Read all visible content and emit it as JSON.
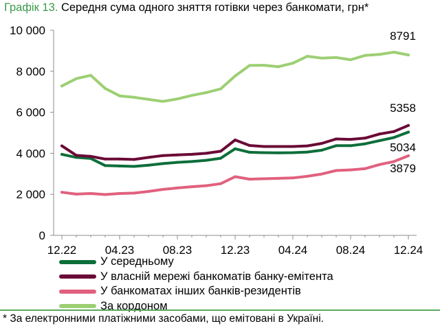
{
  "figure": {
    "label": "Графік 13.",
    "title": "Середня сума одного зняття готівки через банкомати, грн*",
    "footnote": "* За електронними платіжними засобами, що емітовані в Україні."
  },
  "colors": {
    "label": "#3a9a48",
    "divider": "#5aa95a"
  },
  "chart_data": {
    "type": "line",
    "title": "Середня сума одного зняття готівки через банкомати, грн*",
    "xlabel": "",
    "ylabel": "",
    "ylim": [
      0,
      10000
    ],
    "y_ticks": [
      0,
      2000,
      4000,
      6000,
      8000,
      10000
    ],
    "y_tick_labels": [
      "0",
      "2 000",
      "4 000",
      "6 000",
      "8 000",
      "10 000"
    ],
    "x_count": 25,
    "x_tick_positions": [
      0,
      4,
      8,
      12,
      16,
      20,
      24
    ],
    "x_tick_labels": [
      "12.22",
      "04.23",
      "08.23",
      "12.23",
      "04.24",
      "08.24",
      "12.24"
    ],
    "grid": false,
    "legend_position": "bottom",
    "series": [
      {
        "name": "У середньому",
        "color": "#0d6e3a",
        "values": [
          3950,
          3800,
          3750,
          3400,
          3380,
          3360,
          3420,
          3500,
          3560,
          3600,
          3660,
          3760,
          4220,
          4050,
          4030,
          4020,
          4030,
          4060,
          4150,
          4370,
          4370,
          4460,
          4620,
          4770,
          5034
        ],
        "end_label": "5034"
      },
      {
        "name": "У власній мережі банкоматів банку-емітента",
        "color": "#6a0a36",
        "values": [
          4360,
          3900,
          3850,
          3720,
          3720,
          3700,
          3800,
          3890,
          3920,
          3950,
          4000,
          4100,
          4650,
          4380,
          4330,
          4330,
          4330,
          4360,
          4480,
          4700,
          4680,
          4740,
          4940,
          5060,
          5358
        ],
        "end_label": "5358"
      },
      {
        "name": "У банкоматах інших банків-резидентів",
        "color": "#e0617e",
        "values": [
          2100,
          2010,
          2040,
          1990,
          2040,
          2060,
          2140,
          2240,
          2310,
          2370,
          2420,
          2520,
          2860,
          2740,
          2760,
          2780,
          2800,
          2880,
          2990,
          3160,
          3190,
          3250,
          3450,
          3600,
          3879
        ],
        "end_label": "3879"
      },
      {
        "name": "За кордоном",
        "color": "#9dcf73",
        "values": [
          7280,
          7640,
          7800,
          7160,
          6800,
          6730,
          6630,
          6530,
          6650,
          6820,
          6960,
          7140,
          7770,
          8280,
          8290,
          8220,
          8390,
          8730,
          8640,
          8670,
          8560,
          8770,
          8820,
          8930,
          8791
        ],
        "end_label": "8791"
      }
    ]
  }
}
